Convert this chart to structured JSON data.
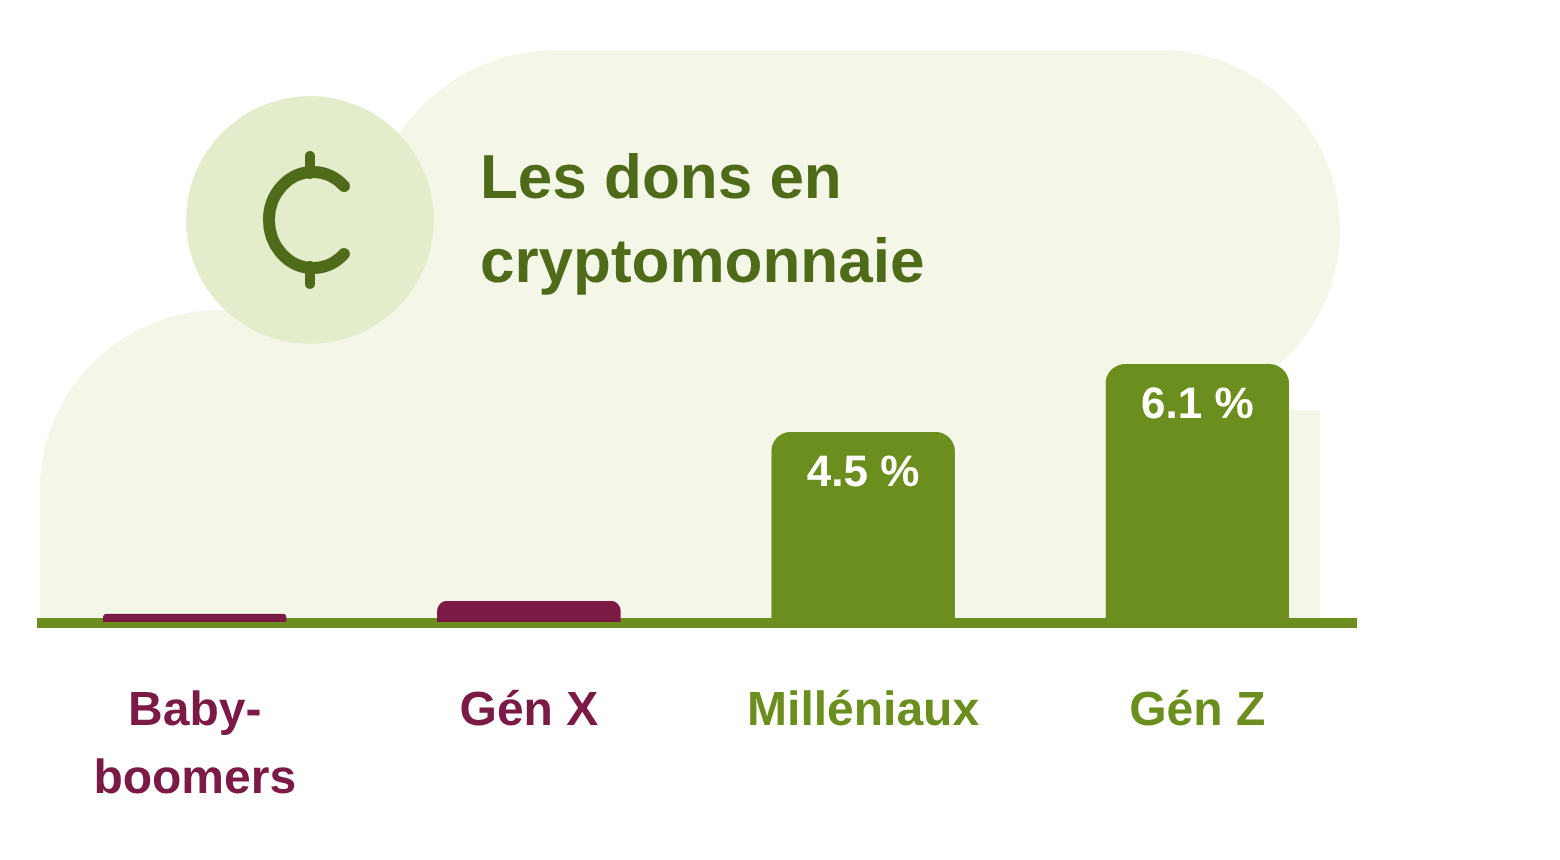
{
  "chart_data": {
    "type": "bar",
    "title": "Les dons en cryptomonnaie",
    "categories": [
      "Baby-boomers",
      "Gén X",
      "Milléniaux",
      "Gén Z"
    ],
    "values": [
      0.2,
      0.5,
      4.5,
      6.1
    ],
    "colors": [
      "#7a1a45",
      "#7a1a45",
      "#6b8e1e",
      "#6b8e1e"
    ],
    "value_labels": [
      null,
      null,
      "4.5 %",
      "6.1 %"
    ],
    "grid": false
  }
}
